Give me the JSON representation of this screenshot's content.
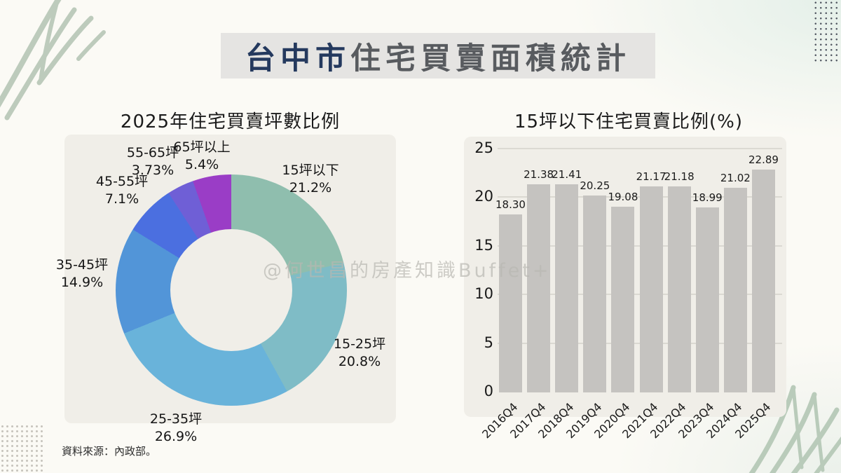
{
  "header": {
    "title_city": "台中市",
    "title_rest": "住宅買賣面積統計",
    "city_color": "#24395e",
    "rest_color": "#585b5f",
    "banner_background": "#e5e4e2"
  },
  "page": {
    "watermark": "@何世昌的房產知識Buffet+",
    "source_note": "資料來源：內政部。"
  },
  "chart_data": [
    {
      "type": "pie",
      "subtype": "donut",
      "title": "2025年住宅買賣坪數比例",
      "start_angle_deg": 0,
      "direction": "clockwise",
      "segments": [
        {
          "label": "15坪以下",
          "display": "21.2%",
          "value": 21.2,
          "color": "#8fbeae"
        },
        {
          "label": "15-25坪",
          "display": "20.8%",
          "value": 20.8,
          "color": "#7fbcc6"
        },
        {
          "label": "25-35坪",
          "display": "26.9%",
          "value": 26.9,
          "color": "#69b3da"
        },
        {
          "label": "35-45坪",
          "display": "14.9%",
          "value": 14.9,
          "color": "#5295d8"
        },
        {
          "label": "45-55坪",
          "display": "7.1%",
          "value": 7.1,
          "color": "#4b6fe0"
        },
        {
          "label": "55-65坪",
          "display": "3.73%",
          "value": 3.73,
          "color": "#6f5fd6"
        },
        {
          "label": "65坪以上",
          "display": "5.4%",
          "value": 5.4,
          "color": "#9a3dc6"
        }
      ]
    },
    {
      "type": "bar",
      "title": "15坪以下住宅買賣比例(%)",
      "categories": [
        "2016Q4",
        "2017Q4",
        "2018Q4",
        "2019Q4",
        "2020Q4",
        "2021Q4",
        "2022Q4",
        "2023Q4",
        "2024Q4",
        "2025Q4"
      ],
      "values": [
        18.3,
        21.38,
        21.41,
        20.25,
        19.08,
        21.17,
        21.18,
        18.99,
        21.02,
        22.89
      ],
      "value_labels": [
        "18.30",
        "21.38",
        "21.41",
        "20.25",
        "19.08",
        "21.17",
        "21.18",
        "18.99",
        "21.02",
        "22.89"
      ],
      "ylim": [
        0,
        25
      ],
      "yticks": [
        0,
        5,
        10,
        15,
        20,
        25
      ],
      "grid": true,
      "bar_color": "#c5c3c0"
    }
  ]
}
